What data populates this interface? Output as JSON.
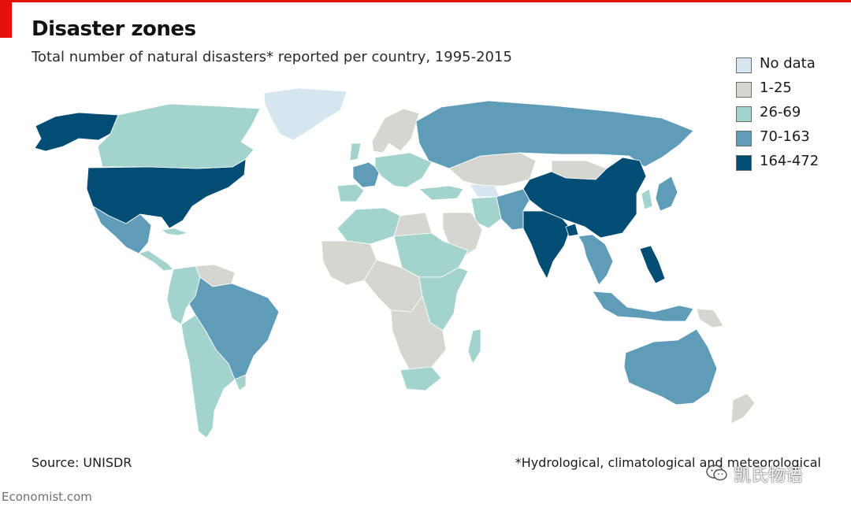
{
  "header": {
    "title": "Disaster zones",
    "subtitle": "Total number of natural disasters* reported per country, 1995-2015"
  },
  "legend": [
    {
      "label": "No data",
      "color": "#d6e6ee"
    },
    {
      "label": "1-25",
      "color": "#d4d6cf"
    },
    {
      "label": "26-69",
      "color": "#a3d3cd"
    },
    {
      "label": "70-163",
      "color": "#5e9cb8"
    },
    {
      "label": "164-472",
      "color": "#014d74"
    }
  ],
  "map": {
    "type": "choropleth",
    "regions": [
      {
        "name": "Alaska (United States)",
        "category": "164-472"
      },
      {
        "name": "United States",
        "category": "164-472"
      },
      {
        "name": "Canada",
        "category": "26-69"
      },
      {
        "name": "Greenland",
        "category": "No data"
      },
      {
        "name": "Mexico",
        "category": "70-163"
      },
      {
        "name": "Central America",
        "category": "26-69"
      },
      {
        "name": "Cuba",
        "category": "26-69"
      },
      {
        "name": "Colombia / Andes",
        "category": "26-69"
      },
      {
        "name": "Venezuela / Guianas",
        "category": "1-25"
      },
      {
        "name": "Brazil",
        "category": "70-163"
      },
      {
        "name": "Argentina / Chile",
        "category": "26-69"
      },
      {
        "name": "Uruguay",
        "category": "26-69"
      },
      {
        "name": "France",
        "category": "70-163"
      },
      {
        "name": "Iberia",
        "category": "26-69"
      },
      {
        "name": "United Kingdom",
        "category": "26-69"
      },
      {
        "name": "Scandinavia",
        "category": "1-25"
      },
      {
        "name": "Central Europe",
        "category": "26-69"
      },
      {
        "name": "Russia",
        "category": "70-163"
      },
      {
        "name": "Kazakhstan / Central Asia",
        "category": "1-25"
      },
      {
        "name": "Turkmenistan area",
        "category": "No data"
      },
      {
        "name": "Mongolia",
        "category": "1-25"
      },
      {
        "name": "China",
        "category": "164-472"
      },
      {
        "name": "India",
        "category": "164-472"
      },
      {
        "name": "Pakistan / Afghanistan",
        "category": "70-163"
      },
      {
        "name": "Iran",
        "category": "26-69"
      },
      {
        "name": "Turkey",
        "category": "26-69"
      },
      {
        "name": "Arabian Peninsula",
        "category": "1-25"
      },
      {
        "name": "Bangladesh",
        "category": "164-472"
      },
      {
        "name": "Southeast Asia",
        "category": "70-163"
      },
      {
        "name": "Philippines",
        "category": "164-472"
      },
      {
        "name": "Japan",
        "category": "70-163"
      },
      {
        "name": "Korea",
        "category": "26-69"
      },
      {
        "name": "Indonesia",
        "category": "70-163"
      },
      {
        "name": "Papua New Guinea",
        "category": "1-25"
      },
      {
        "name": "Australia",
        "category": "70-163"
      },
      {
        "name": "New Zealand",
        "category": "1-25"
      },
      {
        "name": "Algeria / Libya",
        "category": "26-69"
      },
      {
        "name": "West Africa",
        "category": "1-25"
      },
      {
        "name": "Egypt",
        "category": "1-25"
      },
      {
        "name": "Sudan / Ethiopia",
        "category": "26-69"
      },
      {
        "name": "Central Africa",
        "category": "1-25"
      },
      {
        "name": "East Africa",
        "category": "26-69"
      },
      {
        "name": "Southern Africa",
        "category": "1-25"
      },
      {
        "name": "South Africa",
        "category": "26-69"
      },
      {
        "name": "Madagascar",
        "category": "26-69"
      }
    ]
  },
  "footer": {
    "source": "Source: UNISDR",
    "footnote": "*Hydrological, climatological and meteorological",
    "publisher": "Economist.com"
  },
  "watermark": {
    "text": "凯氏物语",
    "icon": "wechat-icon"
  }
}
